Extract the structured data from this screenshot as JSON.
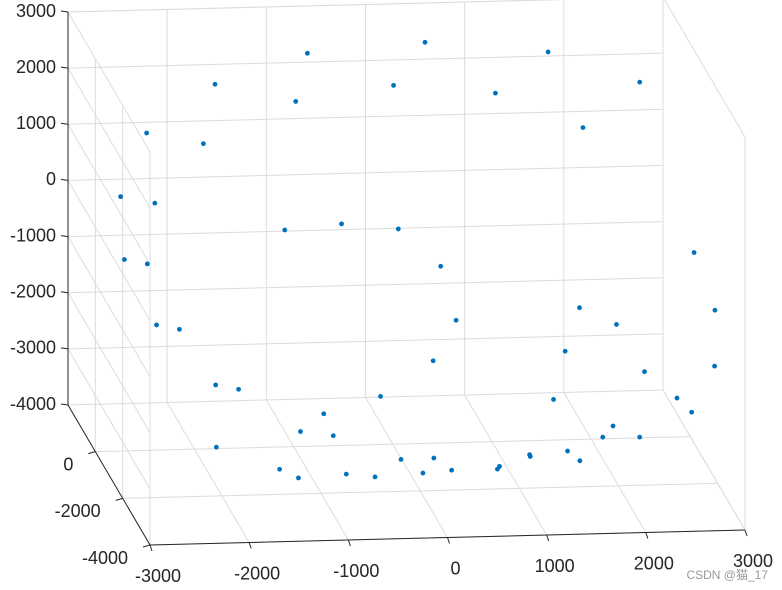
{
  "chart_data": {
    "type": "scatter3d",
    "color": "#0072bd",
    "grid": true,
    "xlim": [
      -3000,
      3000
    ],
    "ylim": [
      -4000,
      2000
    ],
    "zlim": [
      -4000,
      3000
    ],
    "xticks": [
      -3000,
      -2000,
      -1000,
      0,
      1000,
      2000,
      3000
    ],
    "yticks": [
      -4000,
      -2000,
      0
    ],
    "zticks": [
      -4000,
      -3000,
      -2000,
      -1000,
      0,
      1000,
      2000,
      3000
    ],
    "x": [
      2600,
      1800,
      600,
      -600,
      -1600,
      -2400,
      -2800,
      -2900,
      -2700,
      -2200,
      -1400,
      -400,
      600,
      1500,
      2200,
      2700,
      2000,
      1200,
      200,
      -800,
      -1800,
      -2400,
      -2600,
      -2400,
      -1900,
      -1000,
      0,
      1000,
      1800,
      2900,
      3000,
      2900,
      2600,
      -1200,
      -600,
      0,
      400,
      500,
      200,
      -400,
      -1000,
      -1500,
      -800,
      0,
      800,
      1500,
      -1200,
      -400,
      400,
      1200,
      -2000,
      2000,
      1800,
      1600,
      1400,
      2200,
      2400
    ],
    "y": [
      800,
      1700,
      2000,
      1900,
      1400,
      600,
      -400,
      -1400,
      -2300,
      -3000,
      -3400,
      -3500,
      -3300,
      -2800,
      -2100,
      -1200,
      600,
      1200,
      1400,
      1300,
      800,
      0,
      -900,
      -1800,
      -2500,
      -2900,
      -3000,
      -2800,
      -2300,
      -1000,
      -1800,
      -2500,
      -3000,
      -800,
      -600,
      -400,
      -600,
      -1000,
      -1500,
      -2000,
      -2200,
      -2600,
      -2400,
      -2200,
      -2000,
      -1900,
      -1800,
      -1600,
      -1400,
      -1300,
      -1600,
      -1600,
      -600,
      -1000,
      -1600,
      -400,
      -1000
    ],
    "z": [
      2000,
      2200,
      2300,
      2200,
      1900,
      1400,
      700,
      0,
      -800,
      -1600,
      -2300,
      -2800,
      -3100,
      -3200,
      -3100,
      -2800,
      1300,
      1700,
      1800,
      1600,
      1100,
      400,
      -300,
      -1100,
      -1900,
      -2600,
      -3000,
      -3100,
      -3000,
      -300,
      -1000,
      -1700,
      -2300,
      200,
      200,
      0,
      -600,
      -1400,
      -1900,
      -2300,
      -2500,
      -3300,
      -3500,
      -3600,
      -3600,
      -3400,
      -3800,
      -3900,
      -3900,
      -3700,
      -3300,
      -3100,
      -1400,
      -2000,
      -2600,
      -1800,
      -2400
    ]
  },
  "watermark": "CSDN @猫_17"
}
